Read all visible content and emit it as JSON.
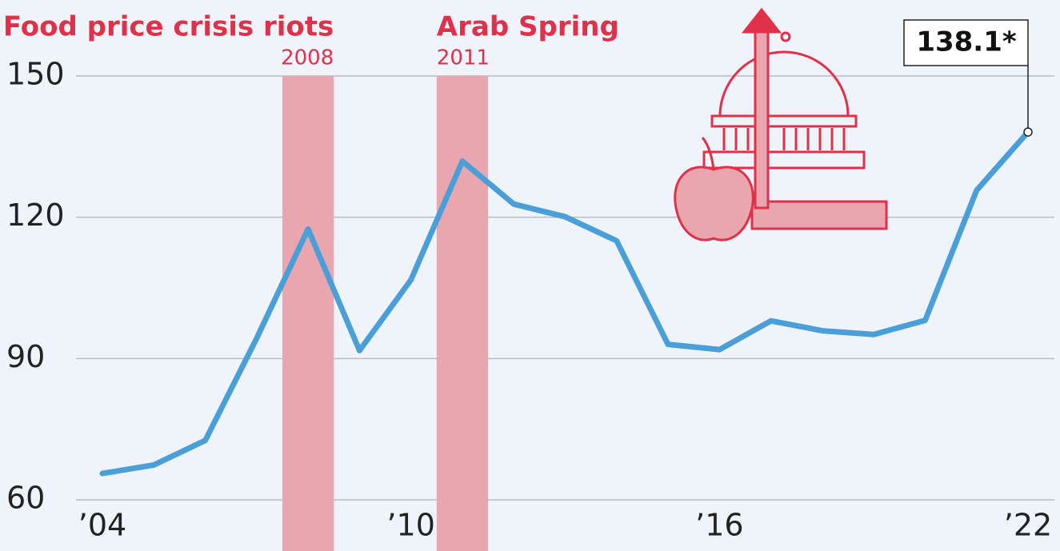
{
  "chart_data": {
    "type": "line",
    "x": [
      2004,
      2005,
      2006,
      2007,
      2008,
      2009,
      2010,
      2011,
      2012,
      2013,
      2014,
      2015,
      2016,
      2017,
      2018,
      2019,
      2020,
      2021,
      2022
    ],
    "values": [
      65.6,
      67.4,
      72.6,
      94.3,
      117.5,
      91.7,
      106.7,
      131.9,
      122.8,
      120.1,
      115.0,
      93.0,
      91.9,
      98.0,
      95.9,
      95.1,
      98.1,
      125.7,
      138.1
    ],
    "value_labels": [
      null,
      null,
      null,
      null,
      null,
      null,
      null,
      null,
      null,
      null,
      null,
      null,
      null,
      null,
      null,
      null,
      null,
      null,
      "138.1*"
    ],
    "color": "#4a9fd8",
    "xlim": [
      2004,
      2022
    ],
    "xticks": [
      {
        "value": 2004,
        "label": "’04"
      },
      {
        "value": 2010,
        "label": "’10"
      },
      {
        "value": 2016,
        "label": "’16"
      },
      {
        "value": 2022,
        "label": "’22"
      }
    ],
    "ylim": [
      60,
      150
    ],
    "yticks": [
      60,
      90,
      120,
      150
    ],
    "grid": true,
    "highlights": [
      {
        "label": "Food price crisis riots",
        "year": 2008,
        "align": "end"
      },
      {
        "label": "Arab Spring",
        "year": 2011,
        "align": "start"
      }
    ],
    "highlight_color": "#e9a6ae"
  }
}
